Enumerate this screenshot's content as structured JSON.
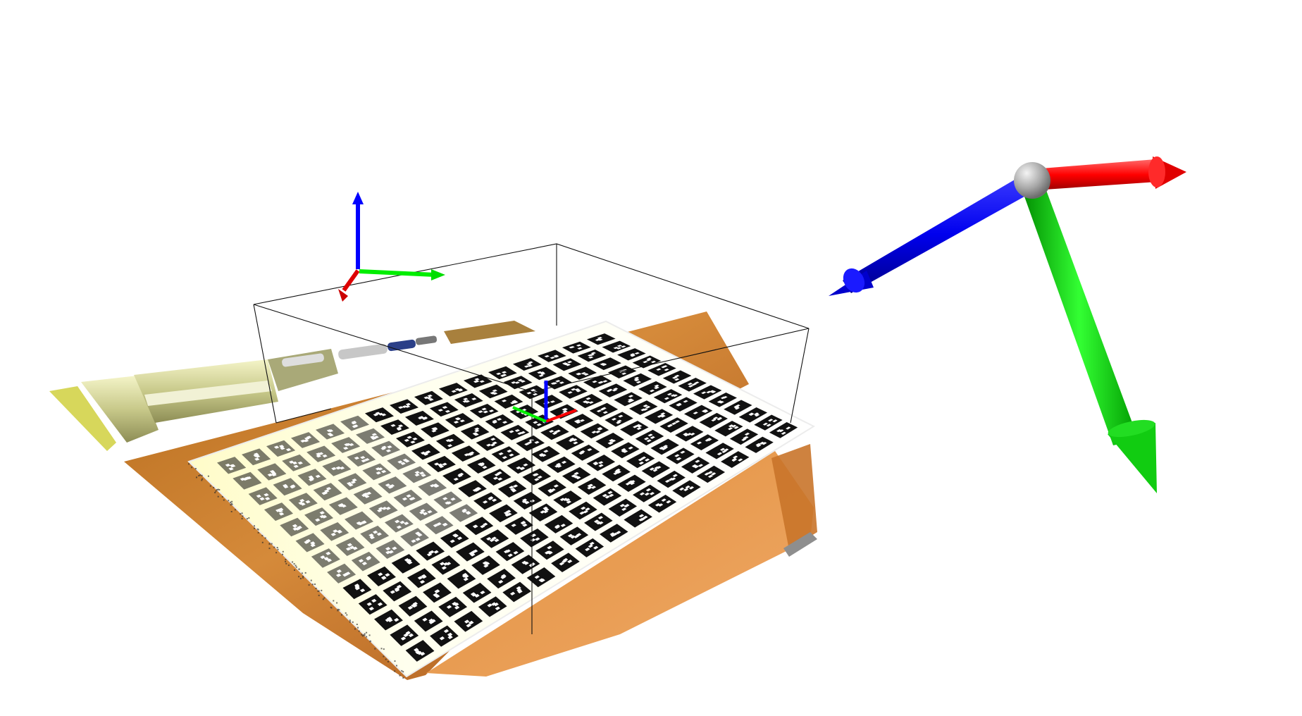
{
  "viewer": {
    "background": "#ffffff"
  },
  "scene": {
    "objects": [
      {
        "name": "point-cloud-table-surface",
        "kind": "point cloud",
        "colors": [
          "#8a4e12",
          "#c9812e",
          "#e79a48"
        ]
      },
      {
        "name": "aruco-calibration-board",
        "kind": "marker grid",
        "rows": 13,
        "cols": 16
      },
      {
        "name": "bounding-box",
        "kind": "wireframe box",
        "color": "#000000"
      },
      {
        "name": "world-axes",
        "kind": "coordinate frame"
      },
      {
        "name": "board-axes",
        "kind": "coordinate frame"
      },
      {
        "name": "camera-pose-frame",
        "kind": "large coordinate frame with sphere origin"
      }
    ],
    "axis_colors": {
      "x": "#ff0000",
      "y": "#00ff00",
      "z": "#0000ff",
      "origin": "#a0a0a0"
    }
  }
}
